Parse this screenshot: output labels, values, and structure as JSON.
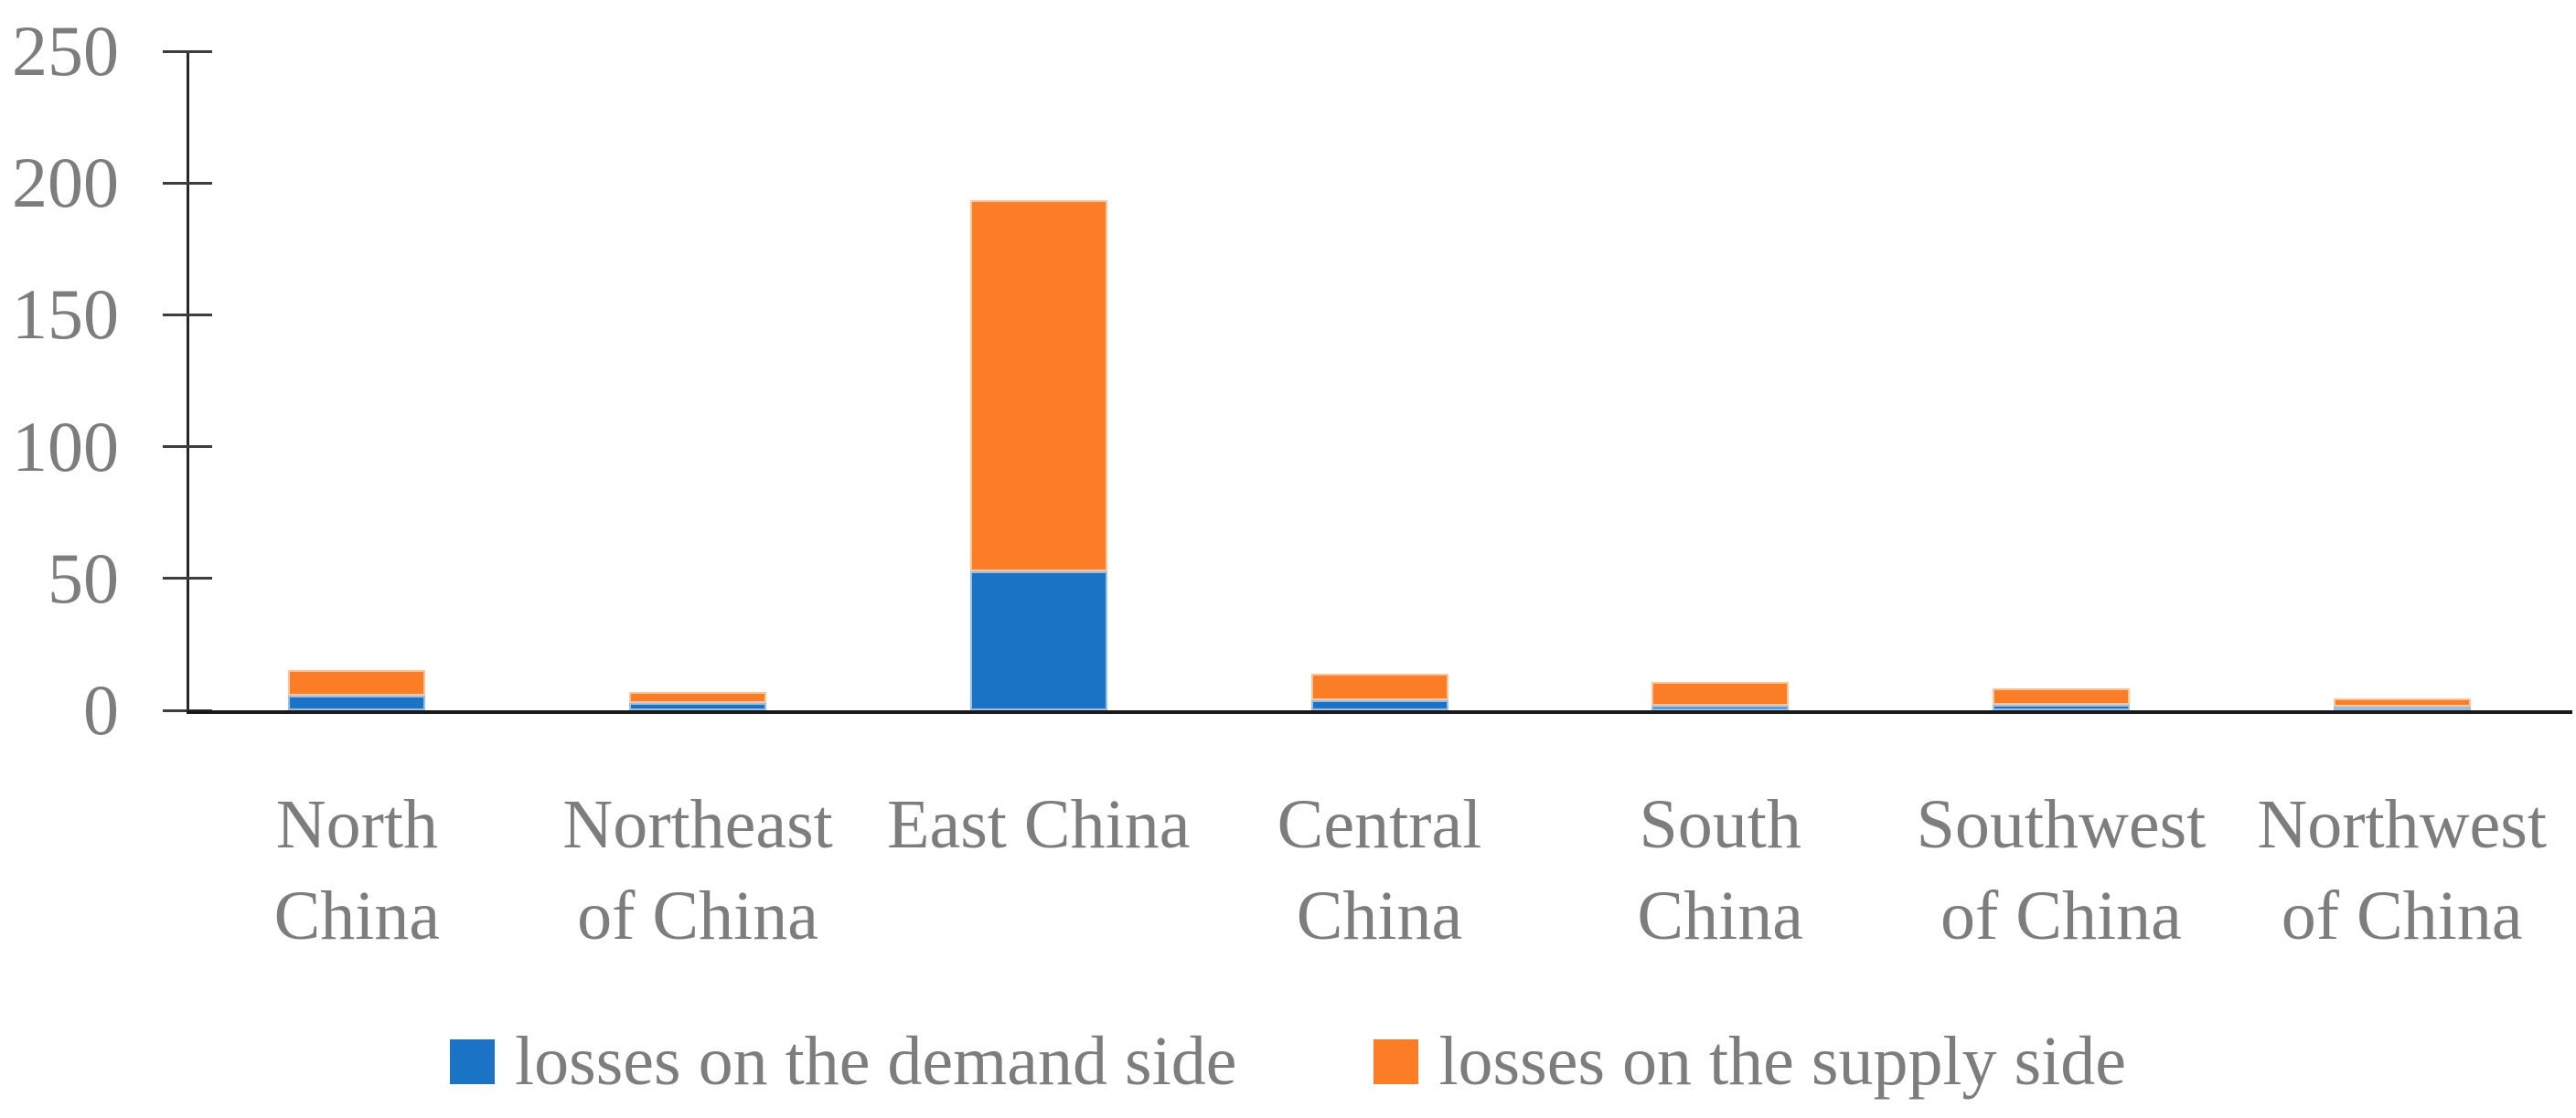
{
  "chart_data": {
    "type": "bar",
    "stacked": true,
    "title": "",
    "xlabel": "",
    "ylabel": "",
    "categories": [
      "North China",
      "Northeast of China",
      "East China",
      "Central China",
      "South China",
      "Southwest of China",
      "Northwest of China"
    ],
    "series": [
      {
        "name": "losses on the demand side",
        "color": "#1B73C6",
        "values": [
          5.6,
          2.8,
          52.7,
          3.8,
          1.6,
          2.2,
          1.3
        ]
      },
      {
        "name": "losses on the supply side",
        "color": "#FB7D26",
        "values": [
          9.5,
          4.1,
          140.8,
          10.0,
          9.3,
          6.2,
          3.3
        ]
      }
    ],
    "totals": [
      15.1,
      6.9,
      193.5,
      13.8,
      10.9,
      8.4,
      4.6
    ],
    "ylim": [
      0,
      250
    ],
    "yticks": [
      0,
      50,
      100,
      150,
      200,
      250
    ],
    "grid": false,
    "legend_position": "bottom",
    "axis_color": "#1a1a1a",
    "label_color": "#7d7d7d"
  }
}
